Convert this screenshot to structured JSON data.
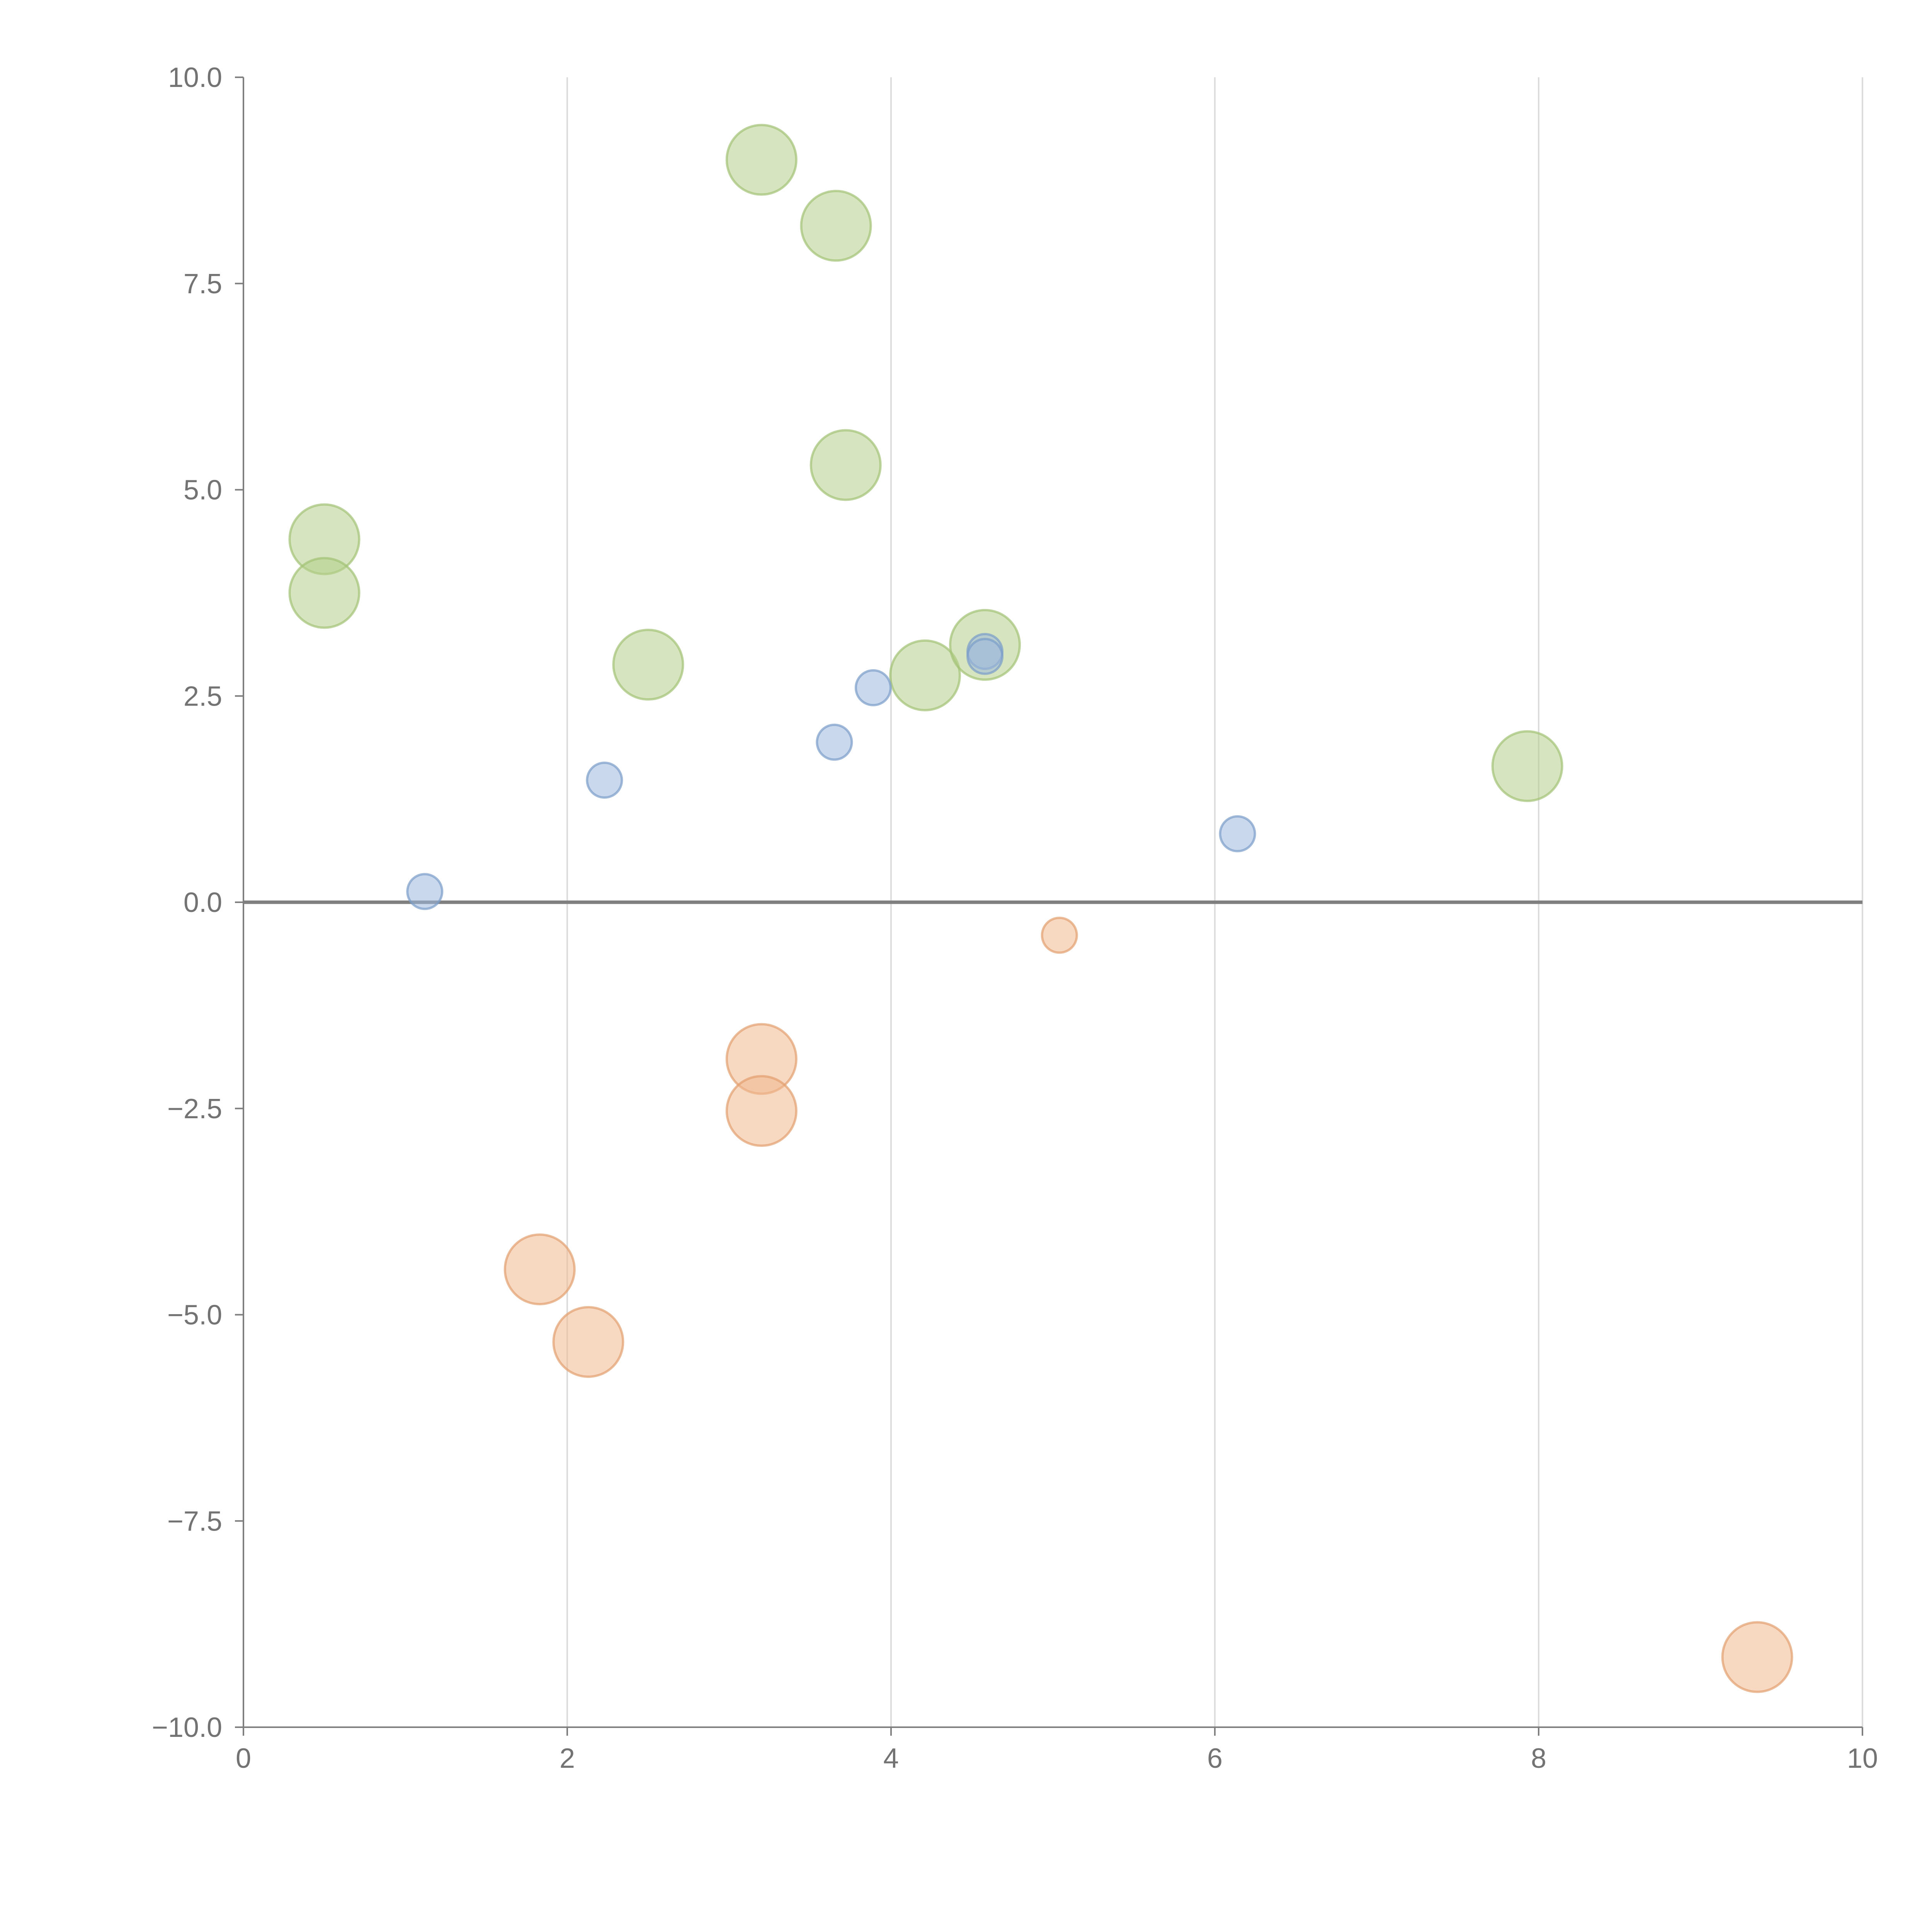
{
  "chart_data": {
    "type": "scatter",
    "title": "",
    "xlabel": "",
    "ylabel": "",
    "xlim": [
      0,
      10
    ],
    "ylim": [
      -10,
      10
    ],
    "grid": {
      "x": true,
      "y": false
    },
    "x_ticks": [
      {
        "value": 0,
        "label": "0"
      },
      {
        "value": 2,
        "label": "2"
      },
      {
        "value": 4,
        "label": "4"
      },
      {
        "value": 6,
        "label": "6"
      },
      {
        "value": 8,
        "label": "8"
      },
      {
        "value": 10,
        "label": "10"
      }
    ],
    "y_ticks": [
      {
        "value": 10,
        "label": "10.0"
      },
      {
        "value": 7.5,
        "label": "7.5"
      },
      {
        "value": 5,
        "label": "5.0"
      },
      {
        "value": 2.5,
        "label": "2.5"
      },
      {
        "value": 0,
        "label": "0.0"
      },
      {
        "value": -2.5,
        "label": "−2.5"
      },
      {
        "value": -5,
        "label": "−5.0"
      },
      {
        "value": -7.5,
        "label": "−7.5"
      },
      {
        "value": -10,
        "label": "−10.0"
      }
    ],
    "series": [
      {
        "name": "green",
        "color": "#b5d08a",
        "stroke": "#a3c275",
        "size": 3,
        "points": [
          {
            "x": 3.2,
            "y": 9.0
          },
          {
            "x": 3.66,
            "y": 8.2
          },
          {
            "x": 3.72,
            "y": 5.3
          },
          {
            "x": 0.5,
            "y": 4.4
          },
          {
            "x": 0.5,
            "y": 3.75
          },
          {
            "x": 2.5,
            "y": 2.88
          },
          {
            "x": 4.21,
            "y": 2.75
          },
          {
            "x": 4.58,
            "y": 3.12
          },
          {
            "x": 7.93,
            "y": 1.65
          }
        ]
      },
      {
        "name": "blue",
        "color": "#9db8dd",
        "stroke": "#7a9cc9",
        "size": 1.5,
        "points": [
          {
            "x": 1.12,
            "y": 0.13
          },
          {
            "x": 2.23,
            "y": 1.48
          },
          {
            "x": 3.65,
            "y": 1.94
          },
          {
            "x": 3.89,
            "y": 2.6
          },
          {
            "x": 4.58,
            "y": 3.04
          },
          {
            "x": 4.58,
            "y": 2.98
          },
          {
            "x": 6.14,
            "y": 0.83
          }
        ]
      },
      {
        "name": "orange",
        "color": "#f0b88e",
        "stroke": "#e39f6f",
        "size": [
          1.5,
          3
        ],
        "points": [
          {
            "x": 5.04,
            "y": -0.4,
            "size": 1.5
          },
          {
            "x": 3.2,
            "y": -1.9,
            "size": 3
          },
          {
            "x": 3.2,
            "y": -2.53,
            "size": 3
          },
          {
            "x": 1.83,
            "y": -4.45,
            "size": 3
          },
          {
            "x": 2.13,
            "y": -5.33,
            "size": 3
          },
          {
            "x": 9.35,
            "y": -9.15,
            "size": 3
          }
        ]
      }
    ]
  }
}
